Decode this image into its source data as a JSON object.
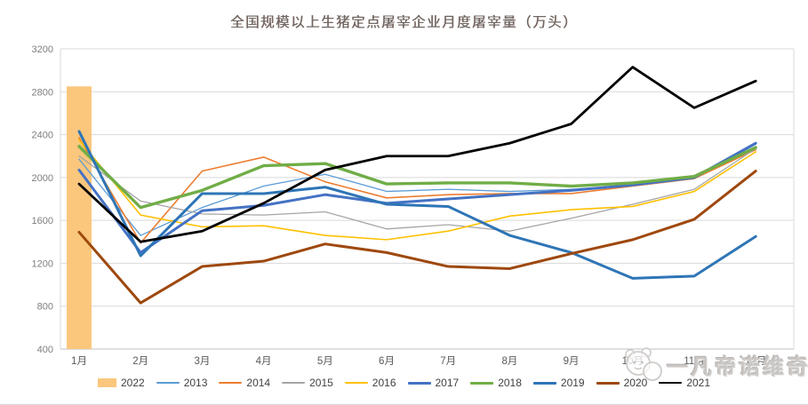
{
  "title": "全国规模以上生猪定点屠宰企业月度屠宰量（万头）",
  "watermark": {
    "text": "一凡帝诺维奇",
    "logo": "panda-face-icon"
  },
  "colors": {
    "gridline": "#d9d9d9",
    "axis_line": "#bfbfbf",
    "y_tick_label": "#7f7f7f",
    "x_tick_label": "#595959",
    "legend_label": "#404040",
    "title": "#6e6662",
    "watermark": "#cbc7c5"
  },
  "chart_data": {
    "type": "combo-bar-line",
    "title": "全国规模以上生猪定点屠宰企业月度屠宰量（万头）",
    "categories": [
      "1月",
      "2月",
      "3月",
      "4月",
      "5月",
      "6月",
      "7月",
      "8月",
      "9月",
      "10月",
      "11月",
      "12月"
    ],
    "y_axis": {
      "min": 400,
      "max": 3200,
      "step": 400,
      "ticks": [
        400,
        800,
        1200,
        1600,
        2000,
        2400,
        2800,
        3200
      ]
    },
    "grid": "horizontal",
    "legend_position": "bottom",
    "bar_series": {
      "name": "2022",
      "color": "#fac77d",
      "values": [
        2850,
        null,
        null,
        null,
        null,
        null,
        null,
        null,
        null,
        null,
        null,
        null
      ]
    },
    "line_series": [
      {
        "name": "2013",
        "color": "#5b9bd5",
        "width": 1.3,
        "values": [
          2170,
          1460,
          1720,
          1920,
          2030,
          1870,
          1890,
          1870,
          1890,
          1930,
          1990,
          2310
        ]
      },
      {
        "name": "2014",
        "color": "#ed7d31",
        "width": 1.6,
        "values": [
          2370,
          1390,
          2060,
          2190,
          1960,
          1810,
          1840,
          1850,
          1850,
          1920,
          1990,
          2260
        ]
      },
      {
        "name": "2015",
        "color": "#a5a5a5",
        "width": 1.3,
        "values": [
          2200,
          1780,
          1660,
          1650,
          1680,
          1520,
          1560,
          1500,
          1620,
          1750,
          1890,
          2270
        ]
      },
      {
        "name": "2016",
        "color": "#ffc000",
        "width": 1.6,
        "values": [
          2350,
          1650,
          1540,
          1550,
          1460,
          1420,
          1500,
          1640,
          1700,
          1730,
          1870,
          2240
        ]
      },
      {
        "name": "2017",
        "color": "#4472c4",
        "width": 3,
        "values": [
          2070,
          1300,
          1690,
          1740,
          1840,
          1760,
          1800,
          1840,
          1880,
          1930,
          2000,
          2320
        ]
      },
      {
        "name": "2018",
        "color": "#70ad47",
        "width": 3.4,
        "values": [
          2290,
          1720,
          1880,
          2110,
          2130,
          1940,
          1950,
          1950,
          1920,
          1950,
          2010,
          2280
        ]
      },
      {
        "name": "2019",
        "color": "#2e75b6",
        "width": 3,
        "values": [
          2430,
          1270,
          1850,
          1850,
          1910,
          1750,
          1730,
          1460,
          1300,
          1060,
          1080,
          1450
        ]
      },
      {
        "name": "2020",
        "color": "#9e480e",
        "width": 3,
        "values": [
          1490,
          830,
          1170,
          1220,
          1380,
          1300,
          1170,
          1150,
          1290,
          1420,
          1610,
          2060
        ]
      },
      {
        "name": "2021",
        "color": "#000000",
        "width": 2.8,
        "values": [
          1940,
          1400,
          1500,
          1760,
          2070,
          2200,
          2200,
          2320,
          2500,
          3030,
          2650,
          2900
        ]
      }
    ]
  }
}
